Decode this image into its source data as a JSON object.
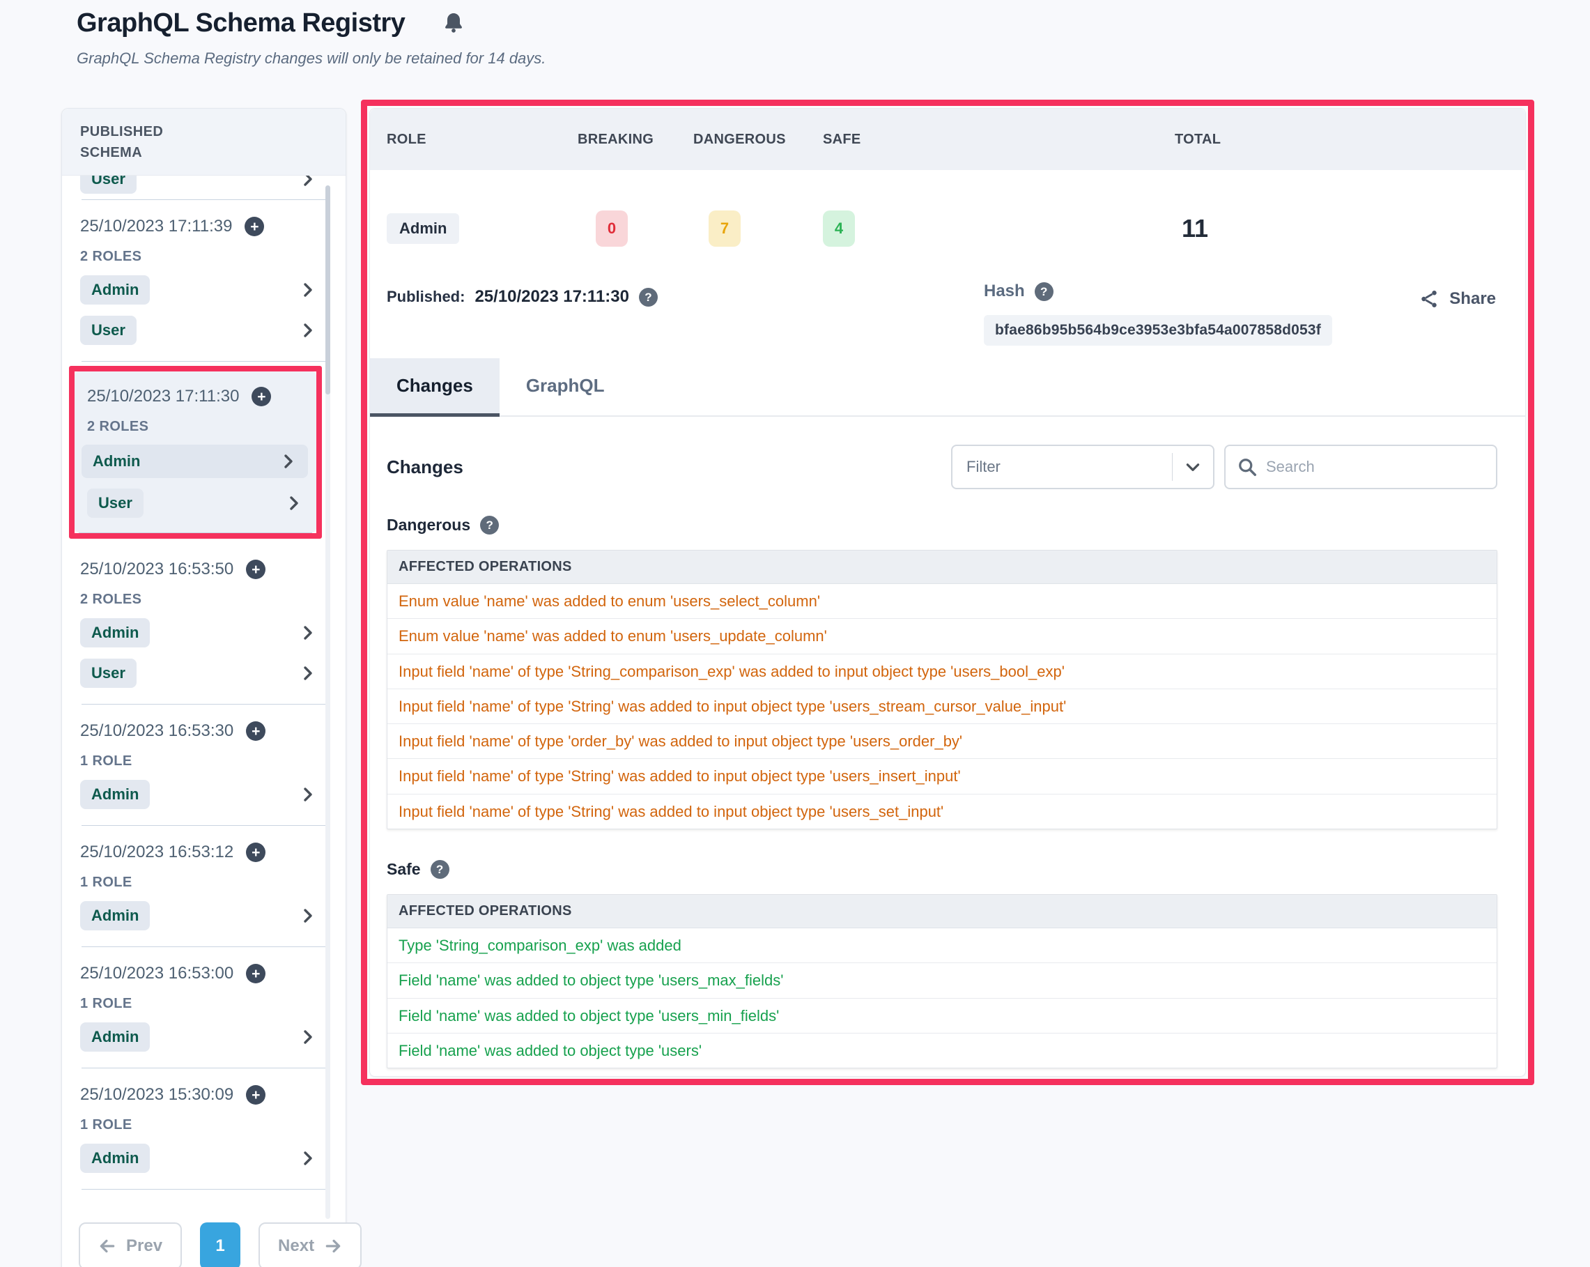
{
  "page": {
    "title": "GraphQL Schema Registry",
    "subtitle": "GraphQL Schema Registry changes will only be retained for 14 days."
  },
  "icons": {
    "help": "?",
    "plus": "+"
  },
  "colors": {
    "annotation_highlight": "#f5315d",
    "breaking": "#e02d39",
    "dangerous": "#e8a50b",
    "safe": "#2bb254",
    "pagination_active": "#38a5df"
  },
  "sidebar": {
    "header": "PUBLISHED SCHEMA",
    "truncated_role": "User",
    "entries": [
      {
        "date": "25/10/2023 17:11:39",
        "roles_label": "2 ROLES",
        "roles": [
          {
            "name": "Admin"
          },
          {
            "name": "User"
          }
        ],
        "highlighted": false
      },
      {
        "date": "25/10/2023 17:11:30",
        "roles_label": "2 ROLES",
        "roles": [
          {
            "name": "Admin",
            "selected": true
          },
          {
            "name": "User"
          }
        ],
        "highlighted": true
      },
      {
        "date": "25/10/2023 16:53:50",
        "roles_label": "2 ROLES",
        "roles": [
          {
            "name": "Admin"
          },
          {
            "name": "User"
          }
        ],
        "highlighted": false
      },
      {
        "date": "25/10/2023 16:53:30",
        "roles_label": "1 ROLE",
        "roles": [
          {
            "name": "Admin"
          }
        ],
        "highlighted": false
      },
      {
        "date": "25/10/2023 16:53:12",
        "roles_label": "1 ROLE",
        "roles": [
          {
            "name": "Admin"
          }
        ],
        "highlighted": false
      },
      {
        "date": "25/10/2023 16:53:00",
        "roles_label": "1 ROLE",
        "roles": [
          {
            "name": "Admin"
          }
        ],
        "highlighted": false
      },
      {
        "date": "25/10/2023 15:30:09",
        "roles_label": "1 ROLE",
        "roles": [
          {
            "name": "Admin"
          }
        ],
        "highlighted": false
      }
    ],
    "pagination": {
      "prev": "Prev",
      "page": "1",
      "next": "Next"
    }
  },
  "main": {
    "summary": {
      "headers": [
        "ROLE",
        "BREAKING",
        "DANGEROUS",
        "SAFE",
        "TOTAL"
      ],
      "row": {
        "role": "Admin",
        "breaking": "0",
        "dangerous": "7",
        "safe": "4",
        "total": "11"
      }
    },
    "published": {
      "label": "Published:",
      "value": "25/10/2023 17:11:30"
    },
    "hash": {
      "label": "Hash",
      "value": "bfae86b95b564b9ce3953e3bfa54a007858d053f"
    },
    "share_label": "Share",
    "tabs": [
      {
        "label": "Changes",
        "active": true
      },
      {
        "label": "GraphQL",
        "active": false
      }
    ],
    "changes_title": "Changes",
    "filter_label": "Filter",
    "search_placeholder": "Search",
    "sections": [
      {
        "title": "Dangerous",
        "type": "dangerous",
        "header": "AFFECTED OPERATIONS",
        "rows": [
          "Enum value 'name' was added to enum 'users_select_column'",
          "Enum value 'name' was added to enum 'users_update_column'",
          "Input field 'name' of type 'String_comparison_exp' was added to input object type 'users_bool_exp'",
          "Input field 'name' of type 'String' was added to input object type 'users_stream_cursor_value_input'",
          "Input field 'name' of type 'order_by' was added to input object type 'users_order_by'",
          "Input field 'name' of type 'String' was added to input object type 'users_insert_input'",
          "Input field 'name' of type 'String' was added to input object type 'users_set_input'"
        ]
      },
      {
        "title": "Safe",
        "type": "safe",
        "header": "AFFECTED OPERATIONS",
        "rows": [
          "Type 'String_comparison_exp' was added",
          "Field 'name' was added to object type 'users_max_fields'",
          "Field 'name' was added to object type 'users_min_fields'",
          "Field 'name' was added to object type 'users'"
        ]
      }
    ]
  }
}
